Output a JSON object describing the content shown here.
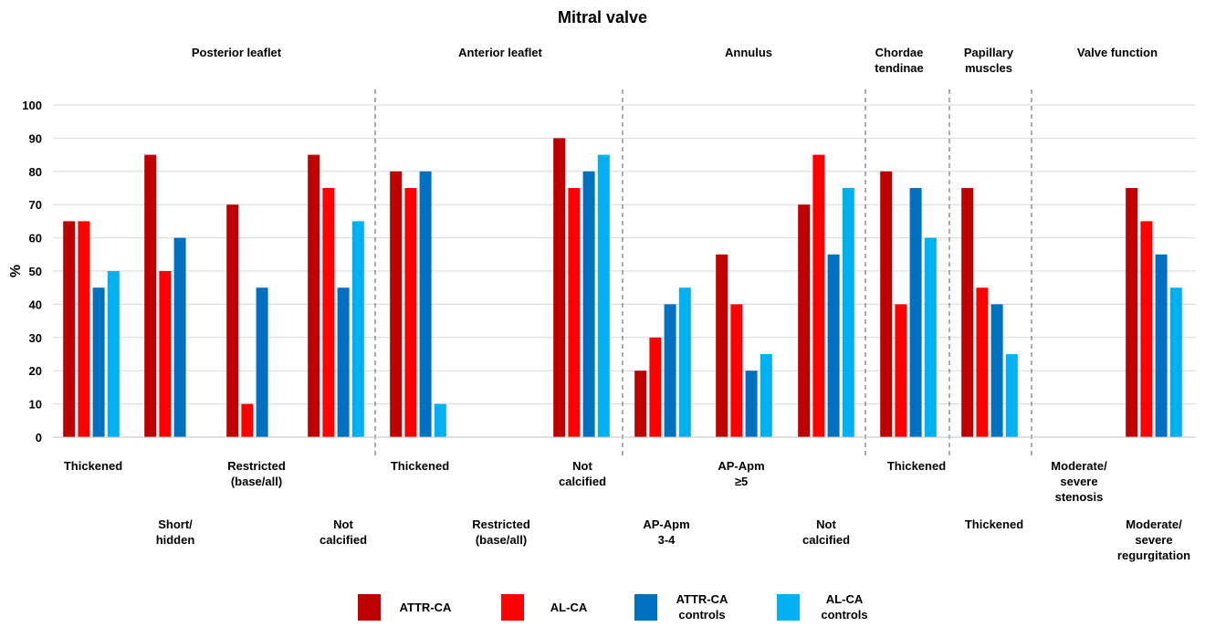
{
  "chart_data": {
    "type": "bar",
    "title": "Mitral valve",
    "ylabel": "%",
    "ylim": [
      0,
      100
    ],
    "yticks": [
      0,
      10,
      20,
      30,
      40,
      50,
      60,
      70,
      80,
      90,
      100
    ],
    "grid": true,
    "legend_position": "bottom",
    "groups": [
      {
        "name": "Posterior leaflet"
      },
      {
        "name": "Anterior leaflet"
      },
      {
        "name": "Annulus"
      },
      {
        "name": "Chordae tendinae"
      },
      {
        "name": "Papillary muscles"
      },
      {
        "name": "Valve function"
      }
    ],
    "categories": [
      "Thickened",
      "Short/ hidden",
      "Restricted (base/all)",
      "Not calcified",
      "Thickened",
      "Restricted (base/all)",
      "Not calcified",
      "AP-Apm 3-4",
      "AP-Apm ≥5",
      "Not calcified",
      "Thickened",
      "Thickened",
      "Moderate/ severe stenosis",
      "Moderate/ severe regurgitation"
    ],
    "category_groups": [
      0,
      0,
      0,
      0,
      1,
      1,
      1,
      2,
      2,
      2,
      3,
      4,
      5,
      5
    ],
    "series": [
      {
        "name": "ATTR-CA",
        "color": "#C00000",
        "values": [
          65,
          85,
          70,
          85,
          80,
          0,
          90,
          20,
          55,
          70,
          80,
          75,
          0,
          75
        ]
      },
      {
        "name": "AL-CA",
        "color": "#FF0000",
        "values": [
          65,
          50,
          10,
          75,
          75,
          0,
          75,
          30,
          40,
          85,
          40,
          45,
          0,
          65
        ]
      },
      {
        "name": "ATTR-CA controls",
        "color": "#0070C0",
        "values": [
          45,
          60,
          45,
          45,
          80,
          0,
          80,
          40,
          20,
          55,
          75,
          40,
          0,
          55
        ]
      },
      {
        "name": "AL-CA controls",
        "color": "#00B0F0",
        "values": [
          50,
          0,
          0,
          65,
          10,
          0,
          85,
          45,
          25,
          75,
          60,
          25,
          0,
          45
        ]
      }
    ]
  }
}
